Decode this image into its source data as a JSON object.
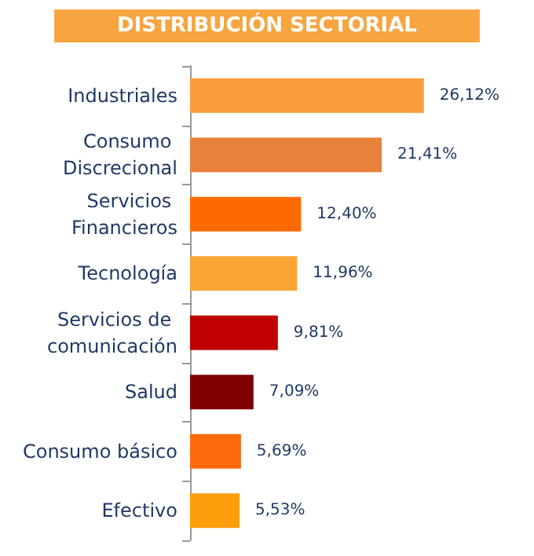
{
  "chart_data": {
    "type": "bar",
    "orientation": "horizontal",
    "title": "DISTRIBUCIÓN SECTORIAL",
    "categories": [
      "Industriales",
      "Consumo Discrecional",
      "Servicios Financieros",
      "Tecnología",
      "Servicios de comunicación",
      "Salud",
      "Consumo básico",
      "Efectivo"
    ],
    "values": [
      26.12,
      21.41,
      12.4,
      11.96,
      9.81,
      7.09,
      5.69,
      5.53
    ],
    "value_labels": [
      "26,12%",
      "21,41%",
      "12,40%",
      "11,96%",
      "9,81%",
      "7,09%",
      "5,69%",
      "5,53%"
    ],
    "colors": [
      "#f99d3a",
      "#e8823a",
      "#ff6a00",
      "#fba534",
      "#c00000",
      "#7f0000",
      "#fd6a0c",
      "#fd9d0c"
    ]
  }
}
